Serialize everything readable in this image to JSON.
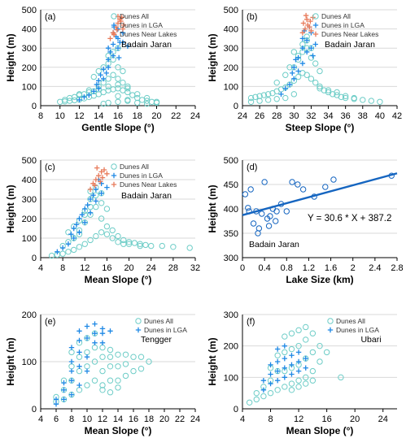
{
  "colors": {
    "dunes_all": "#6ecdc7",
    "dunes_lga": "#1e88e5",
    "dunes_lakes": "#e87a5a",
    "fit_line": "#1565c0"
  },
  "chart_data": [
    {
      "type": "scatter",
      "panel_label": "(a)",
      "region": "Badain Jaran",
      "xlabel": "Gentle Slope (°)",
      "ylabel": "Height (m)",
      "xlim": [
        8,
        24
      ],
      "ylim": [
        0,
        500
      ],
      "xticks": [
        "8",
        "10",
        "12",
        "14",
        "16",
        "18",
        "20",
        "22",
        "24"
      ],
      "yticks": [
        "0",
        "100",
        "200",
        "300",
        "400",
        "500"
      ],
      "legend": [
        "Dunes All",
        "Dunes in LGA",
        "Dunes Near Lakes"
      ],
      "series": [
        {
          "name": "Dunes All",
          "marker": "circle",
          "x": [
            10,
            10.5,
            11,
            11.5,
            12,
            12.5,
            13,
            13.5,
            14,
            14.5,
            15,
            15.5,
            16,
            16.5,
            17,
            17.5,
            18,
            18.5,
            19,
            19.5,
            20,
            12,
            13,
            14,
            14.5,
            15,
            15.5,
            16,
            16.5,
            17,
            13.5,
            14,
            14.5,
            15,
            15.5,
            16,
            16.5,
            15,
            15.5,
            16,
            14.5,
            15,
            16,
            17,
            18,
            19,
            11,
            12,
            13,
            14,
            15,
            16,
            17,
            18,
            19,
            20,
            10.5,
            11.5,
            12.5,
            13.5,
            16,
            17
          ],
          "y": [
            20,
            22,
            25,
            28,
            32,
            38,
            45,
            52,
            60,
            70,
            80,
            85,
            90,
            80,
            70,
            55,
            40,
            30,
            25,
            20,
            15,
            60,
            80,
            100,
            120,
            140,
            160,
            140,
            120,
            100,
            150,
            180,
            200,
            220,
            240,
            200,
            180,
            260,
            280,
            300,
            10,
            15,
            20,
            25,
            15,
            10,
            40,
            55,
            70,
            85,
            100,
            110,
            90,
            60,
            40,
            20,
            30,
            45,
            60,
            75,
            50,
            30
          ]
        },
        {
          "name": "Dunes in LGA",
          "marker": "plus",
          "x": [
            12,
            12.5,
            13,
            13.5,
            14,
            14,
            14.5,
            14.5,
            15,
            15,
            15,
            15.5,
            15.5,
            15.5,
            16,
            16,
            16,
            16.5,
            16.5,
            17,
            14.8,
            15.2,
            15.8,
            16.2,
            13.8,
            15.6,
            16.1,
            14.2
          ],
          "y": [
            30,
            45,
            55,
            75,
            90,
            130,
            140,
            190,
            200,
            240,
            300,
            260,
            320,
            380,
            300,
            350,
            400,
            330,
            380,
            310,
            170,
            280,
            360,
            330,
            110,
            410,
            250,
            160
          ]
        },
        {
          "name": "Dunes Near Lakes",
          "marker": "plus",
          "x": [
            15.2,
            15.5,
            15.8,
            16,
            16.2,
            16.4,
            16.6,
            15.9,
            16.3,
            15.6,
            16.5,
            16
          ],
          "y": [
            350,
            380,
            410,
            430,
            450,
            460,
            420,
            395,
            440,
            370,
            400,
            465
          ]
        }
      ]
    },
    {
      "type": "scatter",
      "panel_label": "(b)",
      "region": "Badain Jaran",
      "xlabel": "Steep Slope (°)",
      "ylabel": "Height (m)",
      "xlim": [
        24,
        42
      ],
      "ylim": [
        0,
        500
      ],
      "xticks": [
        "24",
        "26",
        "28",
        "30",
        "32",
        "34",
        "36",
        "38",
        "40",
        "42"
      ],
      "yticks": [
        "0",
        "100",
        "200",
        "300",
        "400",
        "500"
      ],
      "legend": [
        "Dunes All",
        "Dunes in LGA",
        "Dunes Near Lakes"
      ],
      "series": [
        {
          "name": "Dunes All",
          "marker": "circle",
          "x": [
            25,
            25.5,
            26,
            26.5,
            27,
            27.5,
            28,
            28.5,
            29,
            29.5,
            30,
            30.5,
            31,
            31.5,
            32,
            32.5,
            33,
            33.5,
            34,
            34.5,
            35,
            35.5,
            36,
            37,
            38,
            39,
            40,
            28,
            29,
            30,
            30.5,
            31,
            31.5,
            32,
            32.5,
            33,
            30,
            31,
            31.5,
            32,
            29.5,
            30.5,
            31.5,
            25,
            26,
            27,
            28,
            29,
            30,
            33,
            34,
            35,
            36,
            37
          ],
          "y": [
            40,
            45,
            50,
            55,
            60,
            65,
            75,
            85,
            95,
            110,
            130,
            150,
            170,
            160,
            140,
            120,
            100,
            80,
            70,
            60,
            55,
            45,
            40,
            35,
            30,
            25,
            20,
            120,
            160,
            200,
            240,
            280,
            300,
            250,
            220,
            180,
            280,
            320,
            340,
            300,
            200,
            260,
            360,
            20,
            25,
            30,
            35,
            40,
            60,
            90,
            80,
            70,
            50,
            40
          ]
        },
        {
          "name": "Dunes in LGA",
          "marker": "plus",
          "x": [
            28.5,
            29,
            29.5,
            30,
            30,
            30.5,
            30.5,
            31,
            31,
            31,
            31.5,
            31.5,
            32,
            32,
            32.5,
            30.2,
            31.2,
            31.8,
            29.8,
            32.2
          ],
          "y": [
            60,
            90,
            110,
            140,
            200,
            180,
            250,
            220,
            300,
            350,
            280,
            340,
            300,
            380,
            320,
            240,
            390,
            410,
            170,
            260
          ]
        },
        {
          "name": "Dunes Near Lakes",
          "marker": "plus",
          "x": [
            31,
            31.3,
            31.6,
            31.9,
            32.2,
            31.5,
            31.8,
            31.1,
            32,
            31.4
          ],
          "y": [
            380,
            400,
            420,
            440,
            460,
            450,
            410,
            430,
            390,
            470
          ]
        }
      ]
    },
    {
      "type": "scatter",
      "panel_label": "(c)",
      "region": "Badain Jaran",
      "xlabel": "Mean Slope (°)",
      "ylabel": "Height (m)",
      "xlim": [
        4,
        32
      ],
      "ylim": [
        0,
        500
      ],
      "xticks": [
        "4",
        "8",
        "12",
        "16",
        "20",
        "24",
        "28",
        "32"
      ],
      "yticks": [
        "0",
        "100",
        "200",
        "300",
        "400",
        "500"
      ],
      "legend": [
        "Dunes All",
        "Dunes in LGA",
        "Dunes Near Lakes"
      ],
      "series": [
        {
          "name": "Dunes All",
          "marker": "circle",
          "x": [
            6,
            7,
            8,
            9,
            10,
            11,
            12,
            13,
            14,
            15,
            16,
            17,
            18,
            19,
            20,
            21,
            22,
            23,
            24,
            26,
            28,
            31,
            10,
            11,
            12,
            13,
            14,
            15,
            12,
            13,
            14,
            15,
            16,
            13,
            14,
            15,
            9,
            10,
            11,
            12,
            13,
            8,
            9,
            10,
            11,
            16,
            17,
            18,
            19,
            20,
            22
          ],
          "y": [
            10,
            15,
            20,
            30,
            40,
            55,
            70,
            90,
            110,
            130,
            120,
            100,
            80,
            70,
            80,
            75,
            70,
            65,
            60,
            60,
            55,
            50,
            100,
            140,
            180,
            220,
            260,
            200,
            240,
            300,
            320,
            280,
            250,
            340,
            360,
            330,
            130,
            160,
            190,
            220,
            260,
            60,
            80,
            100,
            120,
            160,
            140,
            110,
            90,
            70,
            60
          ]
        },
        {
          "name": "Dunes in LGA",
          "marker": "plus",
          "x": [
            7,
            8,
            9,
            10,
            10,
            11,
            11,
            12,
            12,
            13,
            13,
            14,
            14,
            15,
            15,
            16,
            12.5,
            13.5,
            14.5,
            11.5,
            9.5,
            10.5
          ],
          "y": [
            30,
            50,
            70,
            100,
            150,
            130,
            200,
            180,
            250,
            230,
            300,
            290,
            350,
            330,
            380,
            360,
            270,
            320,
            400,
            220,
            120,
            170
          ]
        },
        {
          "name": "Dunes Near Lakes",
          "marker": "plus",
          "x": [
            13,
            13.5,
            14,
            14.5,
            15,
            15.5,
            16,
            14.2,
            15.2,
            13.8,
            14.8
          ],
          "y": [
            350,
            380,
            400,
            420,
            440,
            450,
            430,
            460,
            410,
            370,
            390
          ]
        }
      ]
    },
    {
      "type": "scatter",
      "panel_label": "(d)",
      "region": "Badain Jaran",
      "xlabel": "Lake Size (km)",
      "ylabel": "Height (m)",
      "xlim": [
        0,
        2.8
      ],
      "ylim": [
        300,
        500
      ],
      "xticks": [
        "0",
        "0.4",
        "0.8",
        "1.2",
        "1.6",
        "2",
        "2.4",
        "2.8"
      ],
      "yticks": [
        "300",
        "350",
        "400",
        "450",
        "500"
      ],
      "equation": "Y = 30.6 * X + 387.2",
      "fit": {
        "slope": 30.6,
        "intercept": 387.2
      },
      "series": [
        {
          "name": "",
          "marker": "circle",
          "x": [
            0.05,
            0.1,
            0.15,
            0.2,
            0.25,
            0.3,
            0.35,
            0.4,
            0.45,
            0.5,
            0.55,
            0.6,
            0.7,
            0.8,
            0.9,
            1.0,
            1.1,
            1.3,
            1.5,
            1.65,
            2.7,
            0.12,
            0.28,
            0.48,
            0.62
          ],
          "y": [
            430,
            402,
            440,
            370,
            395,
            360,
            390,
            455,
            380,
            385,
            400,
            375,
            410,
            395,
            455,
            450,
            440,
            425,
            445,
            460,
            468,
            395,
            350,
            365,
            395
          ]
        }
      ]
    },
    {
      "type": "scatter",
      "panel_label": "(e)",
      "region": "Tengger",
      "xlabel": "Mean Slope (°)",
      "ylabel": "Height (m)",
      "xlim": [
        4,
        24
      ],
      "ylim": [
        0,
        200
      ],
      "xticks": [
        "4",
        "6",
        "8",
        "10",
        "12",
        "14",
        "16",
        "18",
        "20",
        "22",
        "24"
      ],
      "yticks": [
        "0",
        "100",
        "200"
      ],
      "legend": [
        "Dunes All",
        "Dunes in LGA"
      ],
      "series": [
        {
          "name": "Dunes All",
          "marker": "circle",
          "x": [
            6,
            6,
            7,
            7,
            7,
            8,
            8,
            8,
            8,
            9,
            9,
            9,
            9,
            10,
            10,
            10,
            10,
            11,
            11,
            11,
            11,
            12,
            12,
            12,
            12,
            13,
            13,
            13,
            13,
            14,
            14,
            14,
            15,
            15,
            15,
            16,
            16,
            17,
            17,
            18,
            12,
            13,
            14
          ],
          "y": [
            15,
            25,
            20,
            40,
            60,
            30,
            60,
            90,
            120,
            40,
            80,
            110,
            140,
            50,
            90,
            120,
            150,
            60,
            100,
            130,
            160,
            50,
            80,
            110,
            130,
            60,
            90,
            110,
            125,
            60,
            90,
            115,
            70,
            95,
            115,
            80,
            110,
            85,
            110,
            100,
            40,
            35,
            45
          ]
        },
        {
          "name": "Dunes in LGA",
          "marker": "plus",
          "x": [
            6,
            6,
            7,
            7,
            7,
            8,
            8,
            8,
            8,
            8,
            9,
            9,
            9,
            9,
            9,
            10,
            10,
            10,
            10,
            11,
            11,
            11,
            12,
            12,
            12,
            13
          ],
          "y": [
            10,
            20,
            20,
            40,
            55,
            30,
            60,
            80,
            100,
            130,
            50,
            90,
            120,
            145,
            165,
            80,
            110,
            150,
            175,
            140,
            160,
            180,
            140,
            160,
            170,
            165
          ]
        }
      ]
    },
    {
      "type": "scatter",
      "panel_label": "(f)",
      "region": "Ubari",
      "xlabel": "Mean Slope (°)",
      "ylabel": "Height (m)",
      "xlim": [
        4,
        26
      ],
      "ylim": [
        0,
        300
      ],
      "xticks": [
        "4",
        "8",
        "12",
        "16",
        "20",
        "24"
      ],
      "yticks": [
        "0",
        "100",
        "200",
        "300"
      ],
      "legend": [
        "Dunes All",
        "Dunes in LGA"
      ],
      "series": [
        {
          "name": "Dunes All",
          "marker": "circle",
          "x": [
            5,
            6,
            6,
            7,
            7,
            8,
            8,
            8,
            9,
            9,
            9,
            10,
            10,
            10,
            10,
            11,
            11,
            11,
            11,
            12,
            12,
            12,
            12,
            13,
            13,
            13,
            13,
            14,
            14,
            14,
            15,
            15,
            16,
            18,
            11,
            12,
            13,
            14
          ],
          "y": [
            20,
            30,
            50,
            40,
            70,
            50,
            90,
            130,
            60,
            120,
            170,
            70,
            120,
            180,
            230,
            80,
            130,
            190,
            240,
            90,
            140,
            200,
            250,
            100,
            160,
            220,
            260,
            120,
            180,
            240,
            150,
            200,
            180,
            100,
            60,
            70,
            80,
            90
          ]
        },
        {
          "name": "Dunes in LGA",
          "marker": "plus",
          "x": [
            7,
            7,
            8,
            8,
            8,
            9,
            9,
            9,
            9,
            10,
            10,
            10,
            10,
            11,
            11,
            11,
            12,
            12,
            12,
            13,
            13
          ],
          "y": [
            60,
            90,
            80,
            110,
            140,
            90,
            120,
            150,
            190,
            100,
            130,
            160,
            200,
            110,
            140,
            170,
            120,
            150,
            180,
            130,
            160
          ]
        }
      ]
    }
  ]
}
